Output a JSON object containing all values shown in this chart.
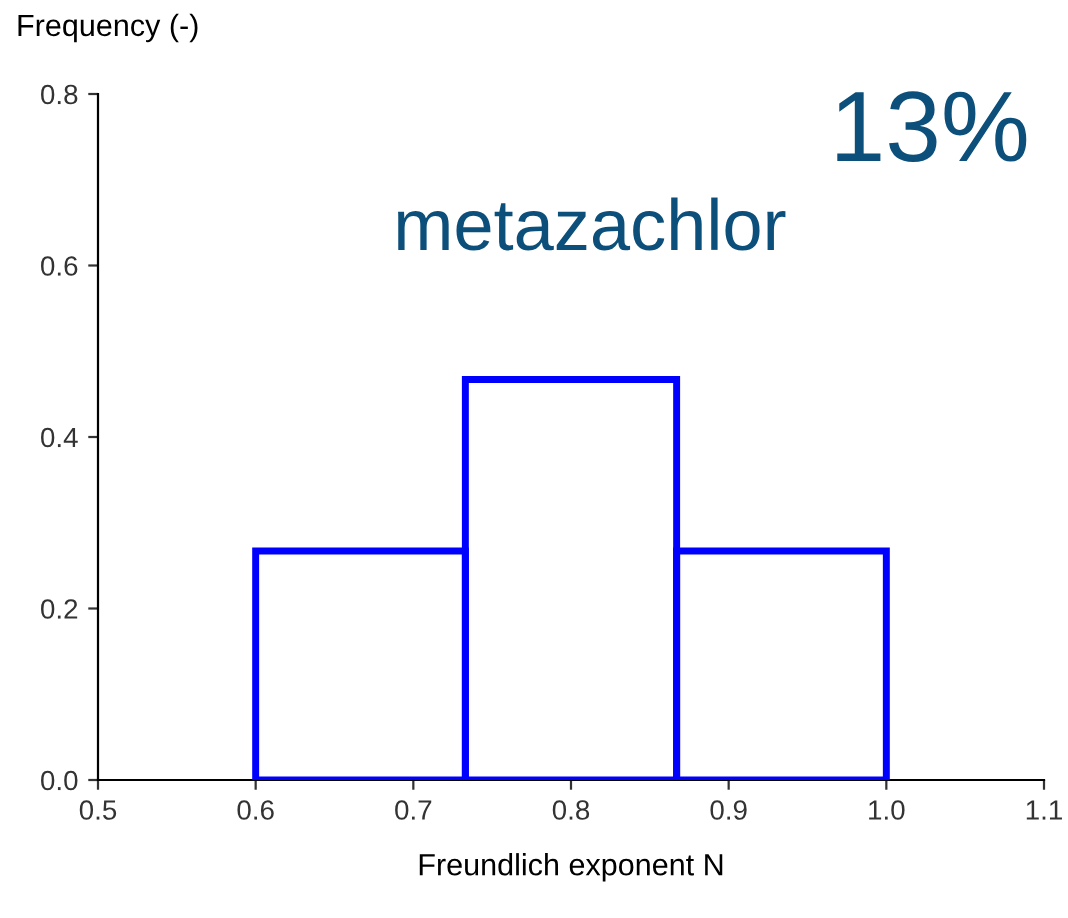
{
  "chart_data": {
    "type": "histogram",
    "bins": [
      0.6,
      0.733,
      0.867,
      1.0
    ],
    "values": [
      0.267,
      0.467,
      0.267
    ],
    "color": "#0000ff",
    "xlabel": "Freundlich exponent N",
    "ylabel": "Frequency (-)",
    "annotations": [
      "metazachlor",
      "13%"
    ],
    "xlim": [
      0.5,
      1.1
    ],
    "xticks": [
      0.5,
      0.6,
      0.7,
      0.8,
      0.9,
      {
        "value": 1,
        "label": "1.0"
      },
      1.1
    ],
    "ylim": [
      0,
      0.8
    ],
    "yticks": [
      {
        "value": 0,
        "label": "0.0"
      },
      0.2,
      0.4,
      0.6,
      0.8
    ],
    "grid": false,
    "legend": false
  }
}
